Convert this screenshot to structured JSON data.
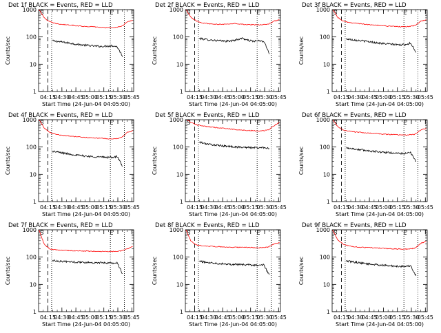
{
  "colors": {
    "events": "#000000",
    "lld": "#ff0000",
    "axis": "#000000",
    "background": "#ffffff"
  },
  "chart_data": [
    {
      "type": "line",
      "title": "Det 1f BLACK = Events, RED = LLD",
      "ylabel": "Counts/sec",
      "xlabel": "Start Time (24-Jun-04 04:05:00)",
      "x_ticks": [
        "04:15",
        "04:30",
        "04:45",
        "05:00",
        "05:15",
        "05:30",
        "05:45"
      ],
      "y_ticks": [
        "1",
        "10",
        "100",
        "1000"
      ],
      "ylim": [
        1,
        1000
      ],
      "xlim": [
        "04:05",
        "05:47"
      ],
      "scale": "log",
      "markers": {
        "start_label": "S",
        "end_label": "E",
        "dashed_line": "04:15",
        "dotted_lines": [
          "04:19",
          "05:22",
          "05:37"
        ]
      },
      "series": [
        {
          "name": "Events",
          "color": "black",
          "x_range": [
            "04:20",
            "05:35"
          ],
          "values": [
            72,
            68,
            64,
            60,
            56,
            52,
            50,
            48,
            46,
            45,
            46,
            48,
            44,
            20
          ]
        },
        {
          "name": "LLD",
          "color": "red",
          "x_range": [
            "04:05",
            "05:46"
          ],
          "values": [
            1100,
            500,
            360,
            310,
            290,
            280,
            270,
            255,
            245,
            240,
            235,
            225,
            220,
            215,
            225,
            240,
            360,
            400
          ]
        }
      ]
    },
    {
      "type": "line",
      "title": "Det 2f BLACK = Events, RED = LLD",
      "ylabel": "Counts/sec",
      "xlabel": "Start Time (24-Jun-04 04:05:00)",
      "x_ticks": [
        "04:15",
        "04:30",
        "04:45",
        "05:00",
        "05:15",
        "05:30",
        "05:45"
      ],
      "y_ticks": [
        "1",
        "10",
        "100",
        "1000"
      ],
      "ylim": [
        1,
        1000
      ],
      "xlim": [
        "04:05",
        "05:47"
      ],
      "scale": "log",
      "markers": {
        "start_label": "S",
        "end_label": "E",
        "dashed_line": "04:15",
        "dotted_lines": [
          "04:19",
          "05:22",
          "05:37"
        ]
      },
      "series": [
        {
          "name": "Events",
          "color": "black",
          "x_range": [
            "04:20",
            "05:35"
          ],
          "values": [
            88,
            82,
            78,
            74,
            72,
            70,
            72,
            80,
            90,
            75,
            70,
            72,
            68,
            25
          ]
        },
        {
          "name": "LLD",
          "color": "red",
          "x_range": [
            "04:05",
            "05:46"
          ],
          "values": [
            1100,
            520,
            380,
            330,
            310,
            300,
            290,
            290,
            300,
            310,
            295,
            285,
            280,
            275,
            280,
            290,
            380,
            420
          ]
        }
      ]
    },
    {
      "type": "line",
      "title": "Det 3f BLACK = Events, RED = LLD",
      "ylabel": "Counts/sec",
      "xlabel": "Start Time (24-Jun-04 04:05:00)",
      "x_ticks": [
        "04:15",
        "04:30",
        "04:45",
        "05:00",
        "05:15",
        "05:30",
        "05:45"
      ],
      "y_ticks": [
        "1",
        "10",
        "100",
        "1000"
      ],
      "ylim": [
        1,
        1000
      ],
      "xlim": [
        "04:05",
        "05:47"
      ],
      "scale": "log",
      "markers": {
        "start_label": "S",
        "end_label": "E",
        "dashed_line": "04:15",
        "dotted_lines": [
          "04:19",
          "05:22",
          "05:37"
        ]
      },
      "series": [
        {
          "name": "Events",
          "color": "black",
          "x_range": [
            "04:20",
            "05:35"
          ],
          "values": [
            85,
            80,
            76,
            72,
            68,
            64,
            60,
            57,
            55,
            53,
            51,
            52,
            60,
            28
          ]
        },
        {
          "name": "LLD",
          "color": "red",
          "x_range": [
            "04:05",
            "05:46"
          ],
          "values": [
            1100,
            520,
            380,
            340,
            320,
            305,
            290,
            280,
            270,
            260,
            250,
            245,
            240,
            235,
            245,
            260,
            380,
            420
          ]
        }
      ]
    },
    {
      "type": "line",
      "title": "Det 4f BLACK = Events, RED = LLD",
      "ylabel": "Counts/sec",
      "xlabel": "Start Time (24-Jun-04 04:05:00)",
      "x_ticks": [
        "04:15",
        "04:30",
        "04:45",
        "05:00",
        "05:15",
        "05:30",
        "05:45"
      ],
      "y_ticks": [
        "1",
        "10",
        "100",
        "1000"
      ],
      "ylim": [
        1,
        1000
      ],
      "xlim": [
        "04:05",
        "05:47"
      ],
      "scale": "log",
      "markers": {
        "start_label": "S",
        "end_label": "E",
        "dashed_line": "04:15",
        "dotted_lines": [
          "04:19",
          "05:22",
          "05:37"
        ]
      },
      "series": [
        {
          "name": "Events",
          "color": "black",
          "x_range": [
            "04:20",
            "05:35"
          ],
          "values": [
            70,
            65,
            60,
            56,
            52,
            49,
            47,
            45,
            44,
            43,
            42,
            42,
            45,
            20
          ]
        },
        {
          "name": "LLD",
          "color": "red",
          "x_range": [
            "04:05",
            "05:46"
          ],
          "values": [
            1100,
            500,
            340,
            290,
            270,
            260,
            250,
            240,
            230,
            220,
            215,
            210,
            205,
            200,
            205,
            220,
            340,
            400
          ]
        }
      ]
    },
    {
      "type": "line",
      "title": "Det 5f BLACK = Events, RED = LLD",
      "ylabel": "Counts/sec",
      "xlabel": "Start Time (24-Jun-04 04:05:00)",
      "x_ticks": [
        "04:15",
        "04:30",
        "04:45",
        "05:00",
        "05:15",
        "05:30",
        "05:45"
      ],
      "y_ticks": [
        "1",
        "10",
        "100",
        "1000"
      ],
      "ylim": [
        1,
        1000
      ],
      "xlim": [
        "04:05",
        "05:47"
      ],
      "scale": "log",
      "markers": {
        "start_label": "S",
        "end_label": "E",
        "dashed_line": "04:15",
        "dotted_lines": [
          "04:19",
          "05:22",
          "05:37"
        ]
      },
      "series": [
        {
          "name": "Events",
          "color": "black",
          "x_range": [
            "04:20",
            "05:35"
          ],
          "values": [
            150,
            135,
            125,
            118,
            112,
            108,
            104,
            100,
            98,
            96,
            95,
            94,
            96,
            90
          ]
        },
        {
          "name": "LLD",
          "color": "red",
          "x_range": [
            "04:05",
            "05:46"
          ],
          "values": [
            1100,
            800,
            650,
            600,
            560,
            530,
            500,
            480,
            460,
            440,
            420,
            410,
            400,
            390,
            395,
            420,
            600,
            800
          ]
        }
      ]
    },
    {
      "type": "line",
      "title": "Det 6f BLACK = Events, RED = LLD",
      "ylabel": "Counts/sec",
      "xlabel": "Start Time (24-Jun-04 04:05:00)",
      "x_ticks": [
        "04:15",
        "04:30",
        "04:45",
        "05:00",
        "05:15",
        "05:30",
        "05:45"
      ],
      "y_ticks": [
        "1",
        "10",
        "100",
        "1000"
      ],
      "ylim": [
        1,
        1000
      ],
      "xlim": [
        "04:05",
        "05:47"
      ],
      "scale": "log",
      "markers": {
        "start_label": "S",
        "end_label": "E",
        "dashed_line": "04:15",
        "dotted_lines": [
          "04:19",
          "05:22",
          "05:37"
        ]
      },
      "series": [
        {
          "name": "Events",
          "color": "black",
          "x_range": [
            "04:20",
            "05:35"
          ],
          "values": [
            95,
            88,
            82,
            78,
            74,
            70,
            67,
            64,
            62,
            60,
            58,
            58,
            62,
            30
          ]
        },
        {
          "name": "LLD",
          "color": "red",
          "x_range": [
            "04:05",
            "05:46"
          ],
          "values": [
            1100,
            560,
            420,
            380,
            360,
            345,
            330,
            320,
            310,
            300,
            290,
            285,
            280,
            275,
            280,
            295,
            420,
            480
          ]
        }
      ]
    },
    {
      "type": "line",
      "title": "Det 7f BLACK = Events, RED = LLD",
      "ylabel": "Counts/sec",
      "xlabel": "Start Time (24-Jun-04 04:05:00)",
      "x_ticks": [
        "04:15",
        "04:30",
        "04:45",
        "05:00",
        "05:15",
        "05:30",
        "05:45"
      ],
      "y_ticks": [
        "1",
        "10",
        "100",
        "1000"
      ],
      "ylim": [
        1,
        1000
      ],
      "xlim": [
        "04:05",
        "05:47"
      ],
      "scale": "log",
      "markers": {
        "start_label": "S",
        "end_label": "E",
        "dashed_line": "04:15",
        "dotted_lines": [
          "04:19",
          "05:22",
          "05:37"
        ]
      },
      "series": [
        {
          "name": "Events",
          "color": "black",
          "x_range": [
            "04:20",
            "05:35"
          ],
          "values": [
            75,
            72,
            70,
            68,
            66,
            65,
            64,
            63,
            62,
            62,
            61,
            60,
            62,
            25
          ]
        },
        {
          "name": "LLD",
          "color": "red",
          "x_range": [
            "04:05",
            "05:46"
          ],
          "values": [
            1100,
            300,
            200,
            185,
            180,
            175,
            172,
            170,
            168,
            165,
            165,
            162,
            160,
            160,
            162,
            170,
            200,
            250
          ]
        }
      ]
    },
    {
      "type": "line",
      "title": "Det 8f BLACK = Events, RED = LLD",
      "ylabel": "Counts/sec",
      "xlabel": "Start Time (24-Jun-04 04:05:00)",
      "x_ticks": [
        "04:15",
        "04:30",
        "04:45",
        "05:00",
        "05:15",
        "05:30",
        "05:45"
      ],
      "y_ticks": [
        "1",
        "10",
        "100",
        "1000"
      ],
      "ylim": [
        1,
        1000
      ],
      "xlim": [
        "04:05",
        "05:47"
      ],
      "scale": "log",
      "markers": {
        "start_label": "S",
        "end_label": "E",
        "dashed_line": "04:15",
        "dotted_lines": [
          "04:19",
          "05:22",
          "05:37"
        ]
      },
      "series": [
        {
          "name": "Events",
          "color": "black",
          "x_range": [
            "04:20",
            "05:35"
          ],
          "values": [
            70,
            66,
            63,
            60,
            58,
            56,
            55,
            54,
            53,
            52,
            51,
            50,
            52,
            22
          ]
        },
        {
          "name": "LLD",
          "color": "red",
          "x_range": [
            "04:05",
            "05:46"
          ],
          "values": [
            1100,
            380,
            280,
            260,
            250,
            245,
            240,
            235,
            232,
            230,
            228,
            225,
            222,
            220,
            225,
            235,
            300,
            350
          ]
        }
      ]
    },
    {
      "type": "line",
      "title": "Det 9f BLACK = Events, RED = LLD",
      "ylabel": "Counts/sec",
      "xlabel": "Start Time (24-Jun-04 04:05:00)",
      "x_ticks": [
        "04:15",
        "04:30",
        "04:45",
        "05:00",
        "05:15",
        "05:30",
        "05:45"
      ],
      "y_ticks": [
        "1",
        "10",
        "100",
        "1000"
      ],
      "ylim": [
        1,
        1000
      ],
      "xlim": [
        "04:05",
        "05:47"
      ],
      "scale": "log",
      "markers": {
        "start_label": "S",
        "end_label": "E",
        "dashed_line": "04:15",
        "dotted_lines": [
          "04:19",
          "05:22",
          "05:37"
        ]
      },
      "series": [
        {
          "name": "Events",
          "color": "black",
          "x_range": [
            "04:20",
            "05:35"
          ],
          "values": [
            72,
            68,
            64,
            60,
            57,
            54,
            52,
            50,
            48,
            47,
            46,
            46,
            48,
            20
          ]
        },
        {
          "name": "LLD",
          "color": "red",
          "x_range": [
            "04:05",
            "05:46"
          ],
          "values": [
            1100,
            420,
            300,
            260,
            240,
            230,
            225,
            220,
            215,
            210,
            205,
            200,
            198,
            195,
            200,
            215,
            320,
            380
          ]
        }
      ]
    }
  ]
}
